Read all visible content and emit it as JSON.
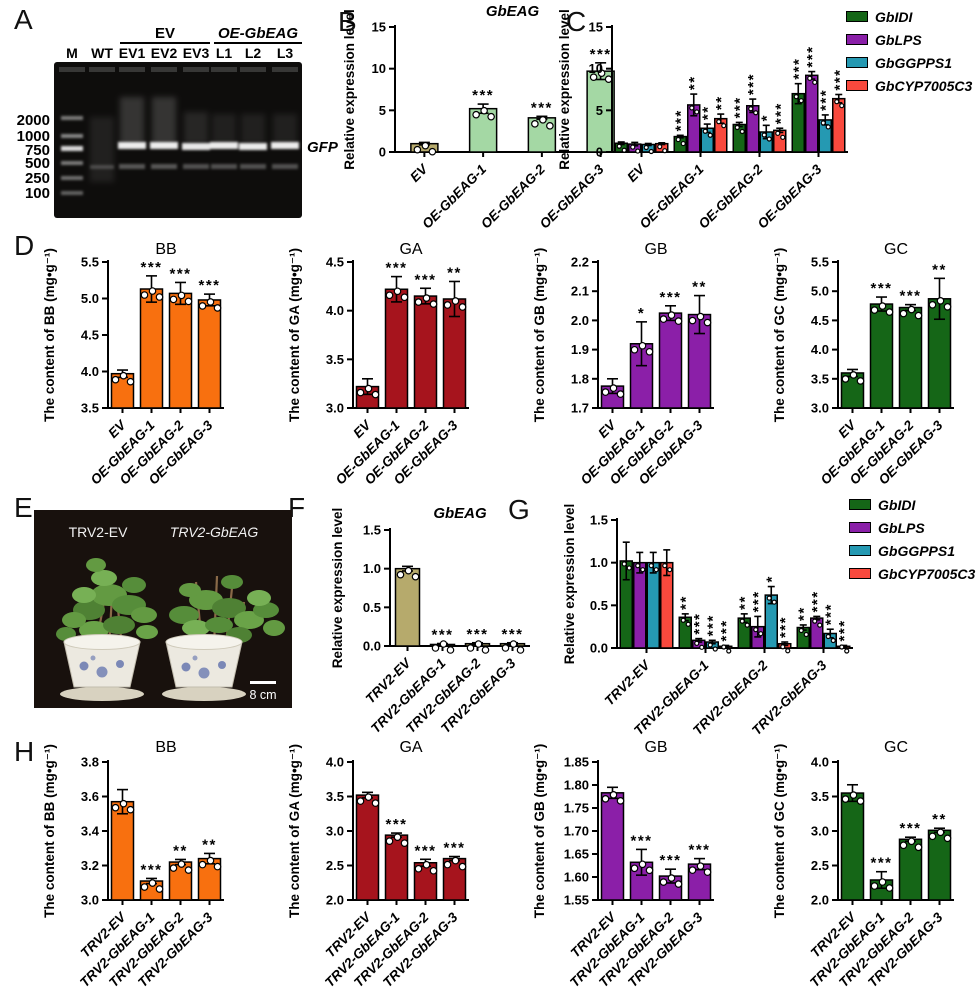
{
  "panel_letters": {
    "a": "A",
    "b": "B",
    "c": "C",
    "d": "D",
    "e": "E",
    "f": "F",
    "g": "G",
    "h": "H"
  },
  "panel_a": {
    "group1_header": "EV",
    "group2_header": "OE-GbEAG",
    "lane_labels": [
      "M",
      "WT",
      "EV1",
      "EV2",
      "EV3",
      "L1",
      "L2",
      "L3"
    ],
    "ladder_labels": [
      "2000",
      "1000",
      "750",
      "500",
      "250",
      "100"
    ],
    "band_label": "GFP"
  },
  "panel_e": {
    "left_plant_label": "TRV2-EV",
    "right_plant_label": "TRV2-GbEAG",
    "scale_bar_label": "8 cm"
  },
  "legend": {
    "entries": [
      {
        "label": "GbIDI",
        "color": "#156617"
      },
      {
        "label": "GbLPS",
        "color": "#8a1fa8"
      },
      {
        "label": "GbGGPPS1",
        "color": "#2599b2"
      },
      {
        "label": "GbCYP7005C3",
        "color": "#f9493d"
      }
    ]
  },
  "chart_data": [
    {
      "id": "b",
      "panel": "B",
      "type": "bar",
      "title": "GbEAG",
      "title_italic": true,
      "ylabel": "Relative expression level",
      "ylim": [
        0,
        15
      ],
      "yticks": [
        "0",
        "5",
        "10",
        "15"
      ],
      "categories": [
        "EV",
        "OE-GbEAG-1",
        "OE-GbEAG-2",
        "OE-GbEAG-3"
      ],
      "values": [
        1.0,
        5.2,
        4.1,
        9.7
      ],
      "errors": [
        0.15,
        0.55,
        0.18,
        1.0
      ],
      "sig": [
        "",
        "***",
        "***",
        "***"
      ],
      "bar_colors": [
        "#b6aa6c",
        "#a4d8a4",
        "#a4d8a4",
        "#a4d8a4"
      ]
    },
    {
      "id": "c",
      "panel": "C",
      "type": "grouped-bar",
      "title": "",
      "title_italic": false,
      "ylabel": "Relative expression level",
      "ylim": [
        0,
        15
      ],
      "yticks": [
        "0",
        "5",
        "10",
        "15"
      ],
      "categories": [
        "EV",
        "OE-GbEAG-1",
        "OE-GbEAG-2",
        "OE-GbEAG-3"
      ],
      "legend_position": "right",
      "series": [
        {
          "name": "GbIDI",
          "color": "#156617",
          "values": [
            1.05,
            1.85,
            3.3,
            7.0
          ],
          "errors": [
            0.15,
            0.15,
            0.25,
            1.2
          ],
          "sig": [
            "",
            "***",
            "***",
            "***"
          ]
        },
        {
          "name": "GbLPS",
          "color": "#8a1fa8",
          "values": [
            0.95,
            5.65,
            5.55,
            9.2
          ],
          "errors": [
            0.2,
            1.3,
            0.8,
            0.45
          ],
          "sig": [
            "",
            "**",
            "***",
            "***"
          ]
        },
        {
          "name": "GbGGPPS1",
          "color": "#2599b2",
          "values": [
            0.9,
            2.85,
            2.4,
            3.85
          ],
          "errors": [
            0.12,
            0.5,
            0.8,
            0.6
          ],
          "sig": [
            "",
            "**",
            "*",
            "***"
          ]
        },
        {
          "name": "GbCYP7005C3",
          "color": "#f9493d",
          "values": [
            1.0,
            4.0,
            2.6,
            6.4
          ],
          "errors": [
            0.1,
            0.55,
            0.25,
            0.5
          ],
          "sig": [
            "",
            "**",
            "***",
            "***"
          ]
        }
      ]
    },
    {
      "id": "d_bb",
      "panel": "D",
      "type": "bar",
      "title": "BB",
      "title_italic": false,
      "ylabel": "The content of BB (mg•g⁻¹)",
      "ylim": [
        3.5,
        5.5
      ],
      "yticks": [
        "3.5",
        "4.0",
        "4.5",
        "5.0",
        "5.5"
      ],
      "categories": [
        "EV",
        "OE-GbEAG-1",
        "OE-GbEAG-2",
        "OE-GbEAG-3"
      ],
      "values": [
        3.97,
        5.13,
        5.07,
        4.98
      ],
      "errors": [
        0.05,
        0.18,
        0.15,
        0.08
      ],
      "sig": [
        "",
        "***",
        "***",
        "***"
      ],
      "color": "#f8700f"
    },
    {
      "id": "d_ga",
      "panel": "D",
      "type": "bar",
      "title": "GA",
      "title_italic": false,
      "ylabel": "The content of GA (mg•g⁻¹)",
      "ylim": [
        3.0,
        4.5
      ],
      "yticks": [
        "3.0",
        "3.5",
        "4.0",
        "4.5"
      ],
      "categories": [
        "EV",
        "OE-GbEAG-1",
        "OE-GbEAG-2",
        "OE-GbEAG-3"
      ],
      "values": [
        3.22,
        4.22,
        4.15,
        4.12
      ],
      "errors": [
        0.08,
        0.13,
        0.08,
        0.18
      ],
      "sig": [
        "",
        "***",
        "***",
        "**"
      ],
      "color": "#a6141d"
    },
    {
      "id": "d_gb",
      "panel": "D",
      "type": "bar",
      "title": "GB",
      "title_italic": false,
      "ylabel": "The content of GB (mg•g⁻¹)",
      "ylim": [
        1.7,
        2.2
      ],
      "yticks": [
        "1.7",
        "1.8",
        "1.9",
        "2.0",
        "2.1",
        "2.2"
      ],
      "categories": [
        "EV",
        "OE-GbEAG-1",
        "OE-GbEAG-2",
        "OE-GbEAG-3"
      ],
      "values": [
        1.775,
        1.92,
        2.025,
        2.02
      ],
      "errors": [
        0.025,
        0.075,
        0.025,
        0.065
      ],
      "sig": [
        "",
        "*",
        "***",
        "**"
      ],
      "color": "#8b1fa8"
    },
    {
      "id": "d_gc",
      "panel": "D",
      "type": "bar",
      "title": "GC",
      "title_italic": false,
      "ylabel": "The content of GC (mg•g⁻¹)",
      "ylim": [
        3.0,
        5.5
      ],
      "yticks": [
        "3.0",
        "3.5",
        "4.0",
        "4.5",
        "5.0",
        "5.5"
      ],
      "categories": [
        "EV",
        "OE-GbEAG-1",
        "OE-GbEAG-2",
        "OE-GbEAG-3"
      ],
      "values": [
        3.6,
        4.78,
        4.72,
        4.87
      ],
      "errors": [
        0.06,
        0.12,
        0.05,
        0.35
      ],
      "sig": [
        "",
        "***",
        "***",
        "**"
      ],
      "color": "#156617"
    },
    {
      "id": "f",
      "panel": "F",
      "type": "bar",
      "title": "GbEAG",
      "title_italic": true,
      "ylabel": "Relative expression level",
      "ylim": [
        0,
        1.5
      ],
      "yticks": [
        "0.0",
        "0.5",
        "1.0",
        "1.5"
      ],
      "categories": [
        "TRV2-EV",
        "TRV2-GbEAG-1",
        "TRV2-GbEAG-2",
        "TRV2-GbEAG-3"
      ],
      "values": [
        1.0,
        0.02,
        0.03,
        0.03
      ],
      "errors": [
        0.03,
        0.012,
        0.012,
        0.012
      ],
      "sig": [
        "",
        "***",
        "***",
        "***"
      ],
      "bar_colors": [
        "#b6aa6c",
        "#b6aa6c",
        "#b6aa6c",
        "#b6aa6c"
      ]
    },
    {
      "id": "g",
      "panel": "G",
      "type": "grouped-bar",
      "title": "",
      "title_italic": false,
      "ylabel": "Relative expression level",
      "ylim": [
        0,
        1.5
      ],
      "yticks": [
        "0.0",
        "0.5",
        "1.0",
        "1.5"
      ],
      "categories": [
        "TRV2-EV",
        "TRV2-GbEAG-1",
        "TRV2-GbEAG-2",
        "TRV2-GbEAG-3"
      ],
      "legend_position": "right",
      "series": [
        {
          "name": "GbIDI",
          "color": "#156617",
          "values": [
            1.02,
            0.36,
            0.35,
            0.24
          ],
          "errors": [
            0.22,
            0.04,
            0.05,
            0.03
          ],
          "sig": [
            "",
            "**",
            "**",
            "**"
          ]
        },
        {
          "name": "GbLPS",
          "color": "#8a1fa8",
          "values": [
            1.0,
            0.09,
            0.25,
            0.35
          ],
          "errors": [
            0.12,
            0.02,
            0.12,
            0.02
          ],
          "sig": [
            "",
            "***",
            "***",
            "***"
          ]
        },
        {
          "name": "GbGGPPS1",
          "color": "#2599b2",
          "values": [
            1.0,
            0.07,
            0.62,
            0.17
          ],
          "errors": [
            0.12,
            0.02,
            0.1,
            0.05
          ],
          "sig": [
            "",
            "***",
            "*",
            "***"
          ]
        },
        {
          "name": "GbCYP7005C3",
          "color": "#f9493d",
          "values": [
            1.0,
            0.02,
            0.05,
            0.02
          ],
          "errors": [
            0.15,
            0.01,
            0.02,
            0.01
          ],
          "sig": [
            "",
            "***",
            "***",
            "***"
          ]
        }
      ]
    },
    {
      "id": "h_bb",
      "panel": "H",
      "type": "bar",
      "title": "BB",
      "title_italic": false,
      "ylabel": "The content of BB (mg•g⁻¹)",
      "ylim": [
        3.0,
        3.8
      ],
      "yticks": [
        "3.0",
        "3.2",
        "3.4",
        "3.6",
        "3.8"
      ],
      "categories": [
        "TRV2-EV",
        "TRV2-GbEAG-1",
        "TRV2-GbEAG-2",
        "TRV2-GbEAG-3"
      ],
      "values": [
        3.57,
        3.11,
        3.22,
        3.24
      ],
      "errors": [
        0.07,
        0.015,
        0.015,
        0.03
      ],
      "sig": [
        "",
        "***",
        "**",
        "**"
      ],
      "color": "#f8700f"
    },
    {
      "id": "h_ga",
      "panel": "H",
      "type": "bar",
      "title": "GA",
      "title_italic": false,
      "ylabel": "The content of GA (mg•g⁻¹)",
      "ylim": [
        2.0,
        4.0
      ],
      "yticks": [
        "2.0",
        "2.5",
        "3.0",
        "3.5",
        "4.0"
      ],
      "categories": [
        "TRV2-EV",
        "TRV2-GbEAG-1",
        "TRV2-GbEAG-2",
        "TRV2-GbEAG-3"
      ],
      "values": [
        3.52,
        2.94,
        2.54,
        2.6
      ],
      "errors": [
        0.04,
        0.03,
        0.05,
        0.03
      ],
      "sig": [
        "",
        "***",
        "***",
        "***"
      ],
      "color": "#a6141d"
    },
    {
      "id": "h_gb",
      "panel": "H",
      "type": "bar",
      "title": "GB",
      "title_italic": false,
      "ylabel": "The content of GB (mg•g⁻¹)",
      "ylim": [
        1.55,
        1.85
      ],
      "yticks": [
        "1.55",
        "1.60",
        "1.65",
        "1.70",
        "1.75",
        "1.80",
        "1.85"
      ],
      "categories": [
        "TRV2-EV",
        "TRV2-GbEAG-1",
        "TRV2-GbEAG-2",
        "TRV2-GbEAG-3"
      ],
      "values": [
        1.783,
        1.632,
        1.602,
        1.628
      ],
      "errors": [
        0.012,
        0.028,
        0.015,
        0.012
      ],
      "sig": [
        "",
        "***",
        "***",
        "***"
      ],
      "color": "#8b1fa8"
    },
    {
      "id": "h_gc",
      "panel": "H",
      "type": "bar",
      "title": "GC",
      "title_italic": false,
      "ylabel": "The content of GC (mg•g⁻¹)",
      "ylim": [
        2.0,
        4.0
      ],
      "yticks": [
        "2.0",
        "2.5",
        "3.0",
        "3.5",
        "4.0"
      ],
      "categories": [
        "TRV2-EV",
        "TRV2-GbEAG-1",
        "TRV2-GbEAG-2",
        "TRV2-GbEAG-3"
      ],
      "values": [
        3.55,
        2.29,
        2.88,
        3.01
      ],
      "errors": [
        0.12,
        0.12,
        0.03,
        0.03
      ],
      "sig": [
        "",
        "***",
        "***",
        "**"
      ],
      "color": "#156617"
    }
  ]
}
